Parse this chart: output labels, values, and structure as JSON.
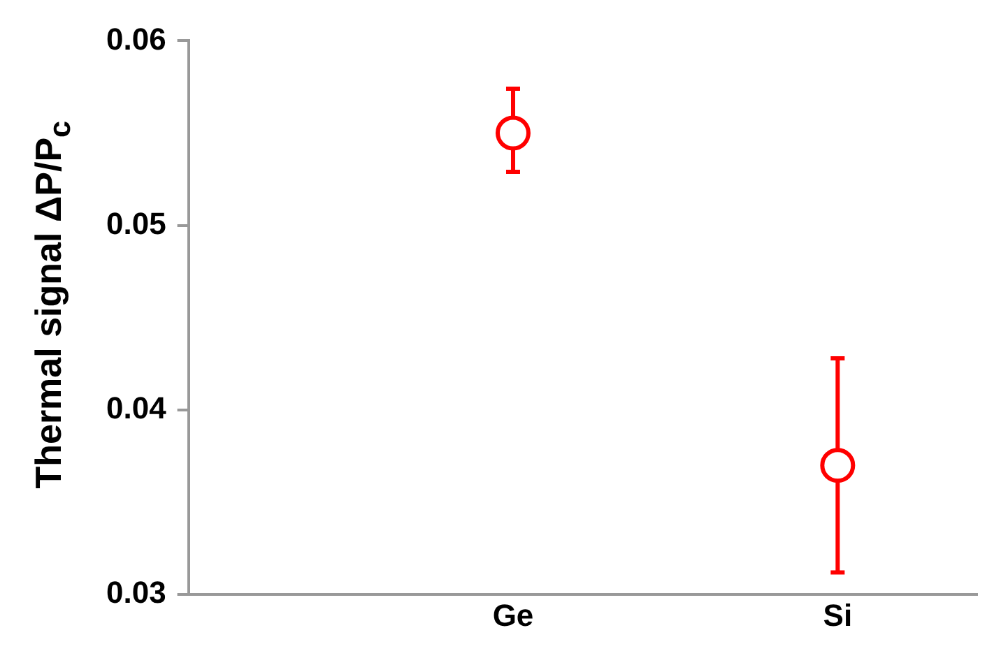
{
  "chart_data": {
    "type": "scatter",
    "ylabel": "Thermal signal ΔP/P$_{c}$",
    "categories": [
      "Ge",
      "Si"
    ],
    "series": [
      {
        "color": "#ff0000",
        "values": [
          0.055,
          0.037
        ],
        "errors": [
          [
            0.0529,
            0.0574
          ],
          [
            0.0312,
            0.0428
          ]
        ]
      }
    ],
    "ylim": [
      0.03,
      0.06
    ],
    "yticks": [
      0.03,
      0.04,
      0.05,
      0.06
    ],
    "marker": "circle",
    "grid": false,
    "legend": false
  }
}
